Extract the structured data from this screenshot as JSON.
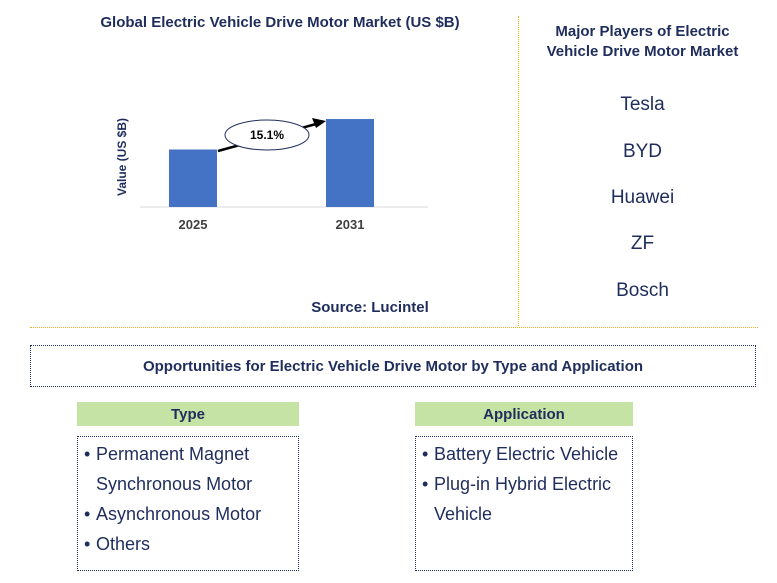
{
  "chart_data": {
    "type": "bar",
    "title": "Global Electric Vehicle Drive Motor Market (US $B)",
    "ylabel": "Value (US $B)",
    "categories": [
      "2025",
      "2031"
    ],
    "values": [
      1.0,
      1.53
    ],
    "ylim": [
      0,
      1.6
    ],
    "grid": false,
    "bar_color": "#4472c4",
    "annotation": "15.1%"
  },
  "source": "Source: Lucintel",
  "players": {
    "title": "Major Players of Electric Vehicle Drive Motor Market",
    "items": [
      "Tesla",
      "BYD",
      "Huawei",
      "ZF",
      "Bosch"
    ]
  },
  "opportunities": {
    "title": "Opportunities for Electric Vehicle Drive Motor by Type and Application",
    "type": {
      "heading": "Type",
      "items": [
        "Permanent Magnet Synchronous Motor",
        "Asynchronous Motor",
        "Others"
      ]
    },
    "application": {
      "heading": "Application",
      "items": [
        "Battery Electric Vehicle",
        "Plug-in Hybrid Electric Vehicle"
      ]
    }
  },
  "colors": {
    "text": "#1f2d5c",
    "divider": "#e8b020",
    "header_fill": "#c5e3a4"
  }
}
